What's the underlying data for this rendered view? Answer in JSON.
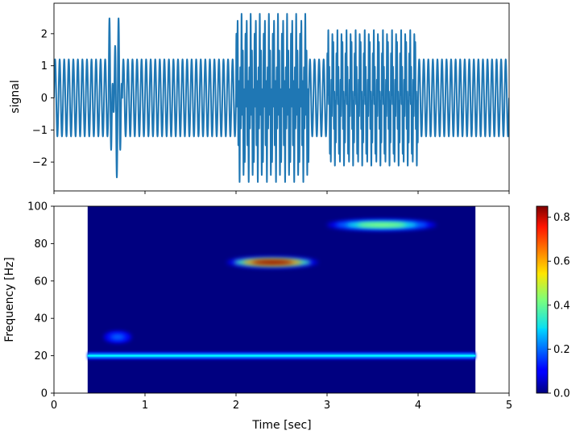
{
  "chart_data": [
    {
      "type": "line",
      "title": "",
      "xlabel": "",
      "ylabel": "signal",
      "xlim": [
        0,
        5
      ],
      "ylim": [
        -2.9,
        2.95
      ],
      "xticks": [
        0,
        1,
        2,
        3,
        4,
        5
      ],
      "yticks": [
        -2,
        -1,
        0,
        1,
        2
      ],
      "ytick_labels": [
        "−2",
        "−1",
        "0",
        "1",
        "2"
      ],
      "show_xtick_labels": false,
      "grid": false,
      "line_color": "#1f77b4",
      "components": [
        {
          "freq_hz": 20,
          "amplitude": 1.2,
          "t_start": 0.0,
          "t_end": 5.0
        },
        {
          "freq_hz": 30,
          "amplitude": 1.4,
          "t_start": 0.6,
          "t_end": 0.75
        },
        {
          "freq_hz": 70,
          "amplitude": 1.45,
          "t_start": 2.0,
          "t_end": 2.8
        },
        {
          "freq_hz": 90,
          "amplitude": 0.95,
          "t_start": 3.0,
          "t_end": 4.0
        }
      ]
    },
    {
      "type": "heatmap",
      "title": "",
      "xlabel": "Time [sec]",
      "ylabel": "Frequency [Hz]",
      "xlim": [
        0,
        5
      ],
      "ylim": [
        0,
        100
      ],
      "xticks": [
        0,
        1,
        2,
        3,
        4,
        5
      ],
      "yticks": [
        0,
        20,
        40,
        60,
        80,
        100
      ],
      "data_extent_x": [
        0.37,
        4.63
      ],
      "colormap": "jet",
      "colorbar": {
        "min": 0.0,
        "max": 0.85,
        "ticks": [
          "0.0",
          "0.2",
          "0.4",
          "0.6",
          "0.8"
        ]
      },
      "background_value": 0.0,
      "features": [
        {
          "label": "20 Hz band",
          "freq_hz": 20,
          "t_start": 0.37,
          "t_end": 4.63,
          "peak": 0.27
        },
        {
          "label": "30 Hz blob",
          "freq_hz": 30,
          "t_start": 0.55,
          "t_end": 0.85,
          "peak": 0.2
        },
        {
          "label": "70 Hz blob",
          "freq_hz": 70,
          "t_start": 1.9,
          "t_end": 2.9,
          "peak": 0.85
        },
        {
          "label": "90 Hz blob",
          "freq_hz": 90,
          "t_start": 3.0,
          "t_end": 4.2,
          "peak": 0.45
        }
      ]
    }
  ]
}
